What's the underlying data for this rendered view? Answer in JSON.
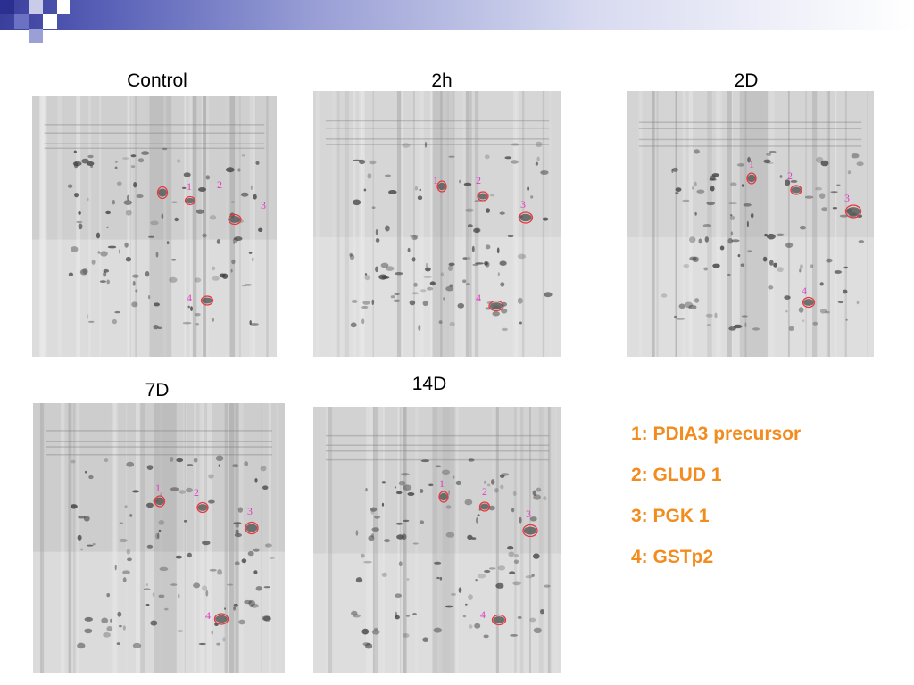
{
  "panels": [
    {
      "title": "Control",
      "spots": [
        {
          "label": "1"
        },
        {
          "label": "2"
        },
        {
          "label": "3"
        },
        {
          "label": "4"
        }
      ]
    },
    {
      "title": "2h",
      "spots": [
        {
          "label": "1"
        },
        {
          "label": "2"
        },
        {
          "label": "3"
        },
        {
          "label": "4"
        }
      ]
    },
    {
      "title": "2D",
      "spots": [
        {
          "label": "1"
        },
        {
          "label": "2"
        },
        {
          "label": "3"
        },
        {
          "label": "4"
        }
      ]
    },
    {
      "title": "7D",
      "spots": [
        {
          "label": "1"
        },
        {
          "label": "2"
        },
        {
          "label": "3"
        },
        {
          "label": "4"
        }
      ]
    },
    {
      "title": "14D",
      "spots": [
        {
          "label": "1"
        },
        {
          "label": "2"
        },
        {
          "label": "3"
        },
        {
          "label": "4"
        }
      ]
    }
  ],
  "legend": [
    "1: PDIA3 precursor",
    "2: GLUD 1",
    "3: PGK 1",
    "4: GSTp2"
  ],
  "colors": {
    "legend_text": "#f28c1e",
    "spot_circle": "#e8383c",
    "spot_label": "#e040c0",
    "header_accent": "#2b2f8f"
  }
}
